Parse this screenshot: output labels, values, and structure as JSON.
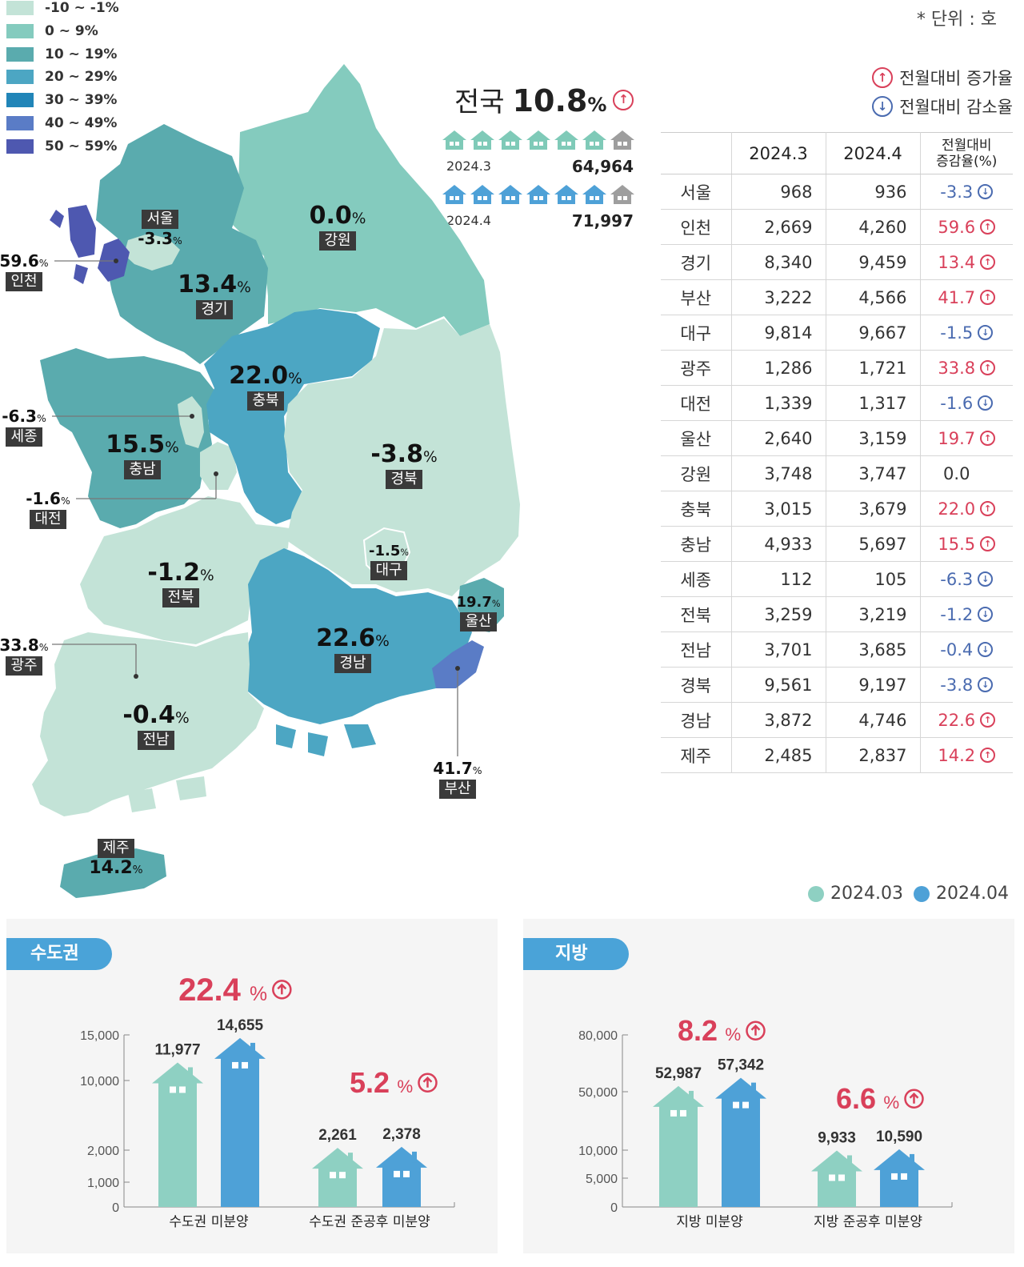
{
  "unit": "* 단위 : 호",
  "legend": [
    {
      "label": "-10 ~ -1%",
      "color": "#c3e3d7"
    },
    {
      "label": "0 ~ 9%",
      "color": "#84cbbe"
    },
    {
      "label": "10 ~ 19%",
      "color": "#5aabae"
    },
    {
      "label": "20 ~ 29%",
      "color": "#4ca6c3"
    },
    {
      "label": "30 ~ 39%",
      "color": "#2185b8"
    },
    {
      "label": "40 ~ 49%",
      "color": "#5a7cc6"
    },
    {
      "label": "50 ~ 59%",
      "color": "#4e58b0"
    }
  ],
  "arrow_legend": {
    "up": "전월대비 증가율",
    "down": "전월대비 감소율"
  },
  "national": {
    "label": "전국",
    "value": "10.8",
    "pct": "%",
    "rows": [
      {
        "period": "2024.3",
        "total": "64,964",
        "color": "#7fcab8"
      },
      {
        "period": "2024.4",
        "total": "71,997",
        "color": "#4ea1d7"
      }
    ]
  },
  "table": {
    "headers": [
      "",
      "2024.3",
      "2024.4",
      "전월대비\n증감율(%)"
    ],
    "header_change_1": "전월대비",
    "header_change_2": "증감율(%)",
    "rows": [
      {
        "region": "서울",
        "mar": "968",
        "apr": "936",
        "change": "-3.3",
        "dir": "down"
      },
      {
        "region": "인천",
        "mar": "2,669",
        "apr": "4,260",
        "change": "59.6",
        "dir": "up"
      },
      {
        "region": "경기",
        "mar": "8,340",
        "apr": "9,459",
        "change": "13.4",
        "dir": "up"
      },
      {
        "region": "부산",
        "mar": "3,222",
        "apr": "4,566",
        "change": "41.7",
        "dir": "up"
      },
      {
        "region": "대구",
        "mar": "9,814",
        "apr": "9,667",
        "change": "-1.5",
        "dir": "down"
      },
      {
        "region": "광주",
        "mar": "1,286",
        "apr": "1,721",
        "change": "33.8",
        "dir": "up"
      },
      {
        "region": "대전",
        "mar": "1,339",
        "apr": "1,317",
        "change": "-1.6",
        "dir": "down"
      },
      {
        "region": "울산",
        "mar": "2,640",
        "apr": "3,159",
        "change": "19.7",
        "dir": "up"
      },
      {
        "region": "강원",
        "mar": "3,748",
        "apr": "3,747",
        "change": "0.0",
        "dir": "zero"
      },
      {
        "region": "충북",
        "mar": "3,015",
        "apr": "3,679",
        "change": "22.0",
        "dir": "up"
      },
      {
        "region": "충남",
        "mar": "4,933",
        "apr": "5,697",
        "change": "15.5",
        "dir": "up"
      },
      {
        "region": "세종",
        "mar": "112",
        "apr": "105",
        "change": "-6.3",
        "dir": "down"
      },
      {
        "region": "전북",
        "mar": "3,259",
        "apr": "3,219",
        "change": "-1.2",
        "dir": "down"
      },
      {
        "region": "전남",
        "mar": "3,701",
        "apr": "3,685",
        "change": "-0.4",
        "dir": "down"
      },
      {
        "region": "경북",
        "mar": "9,561",
        "apr": "9,197",
        "change": "-3.8",
        "dir": "down"
      },
      {
        "region": "경남",
        "mar": "3,872",
        "apr": "4,746",
        "change": "22.6",
        "dir": "up"
      },
      {
        "region": "제주",
        "mar": "2,485",
        "apr": "2,837",
        "change": "14.2",
        "dir": "up"
      }
    ]
  },
  "map_labels": [
    {
      "name": "서울",
      "value": "-3.3"
    },
    {
      "name": "인천",
      "value": "59.6"
    },
    {
      "name": "경기",
      "value": "13.4"
    },
    {
      "name": "강원",
      "value": "0.0"
    },
    {
      "name": "충북",
      "value": "22.0"
    },
    {
      "name": "세종",
      "value": "-6.3"
    },
    {
      "name": "충남",
      "value": "15.5"
    },
    {
      "name": "대전",
      "value": "-1.6"
    },
    {
      "name": "경북",
      "value": "-3.8"
    },
    {
      "name": "대구",
      "value": "-1.5"
    },
    {
      "name": "전북",
      "value": "-1.2"
    },
    {
      "name": "울산",
      "value": "19.7"
    },
    {
      "name": "광주",
      "value": "33.8"
    },
    {
      "name": "경남",
      "value": "22.6"
    },
    {
      "name": "전남",
      "value": "-0.4"
    },
    {
      "name": "부산",
      "value": "41.7"
    },
    {
      "name": "제주",
      "value": "14.2"
    }
  ],
  "percent_sign": "%",
  "series_legend": [
    {
      "name": "2024.03",
      "color": "#8ed0c2"
    },
    {
      "name": "2024.04",
      "color": "#4ea1d7"
    }
  ],
  "chart_data": [
    {
      "type": "bar",
      "panel": "수도권",
      "categories": [
        "수도권 미분양",
        "수도권 준공후 미분양"
      ],
      "series": [
        {
          "name": "2024.03",
          "values": [
            11977,
            2261
          ]
        },
        {
          "name": "2024.04",
          "values": [
            14655,
            2378
          ]
        }
      ],
      "value_labels": [
        [
          "11,977",
          "14,655"
        ],
        [
          "2,261",
          "2,378"
        ]
      ],
      "changes": [
        "22.4",
        "5.2"
      ],
      "yticks": [
        0,
        1000,
        2000,
        10000,
        15000
      ],
      "ytick_labels": [
        "0",
        "1,000",
        "2,000",
        "10,000",
        "15,000"
      ]
    },
    {
      "type": "bar",
      "panel": "지방",
      "categories": [
        "지방 미분양",
        "지방 준공후 미분양"
      ],
      "series": [
        {
          "name": "2024.03",
          "values": [
            52987,
            9933
          ]
        },
        {
          "name": "2024.04",
          "values": [
            57342,
            10590
          ]
        }
      ],
      "value_labels": [
        [
          "52,987",
          "57,342"
        ],
        [
          "9,933",
          "10,590"
        ]
      ],
      "changes": [
        "8.2",
        "6.6"
      ],
      "yticks": [
        0,
        5000,
        10000,
        50000,
        80000
      ],
      "ytick_labels": [
        "0",
        "5,000",
        "10,000",
        "50,000",
        "80,000"
      ]
    }
  ]
}
